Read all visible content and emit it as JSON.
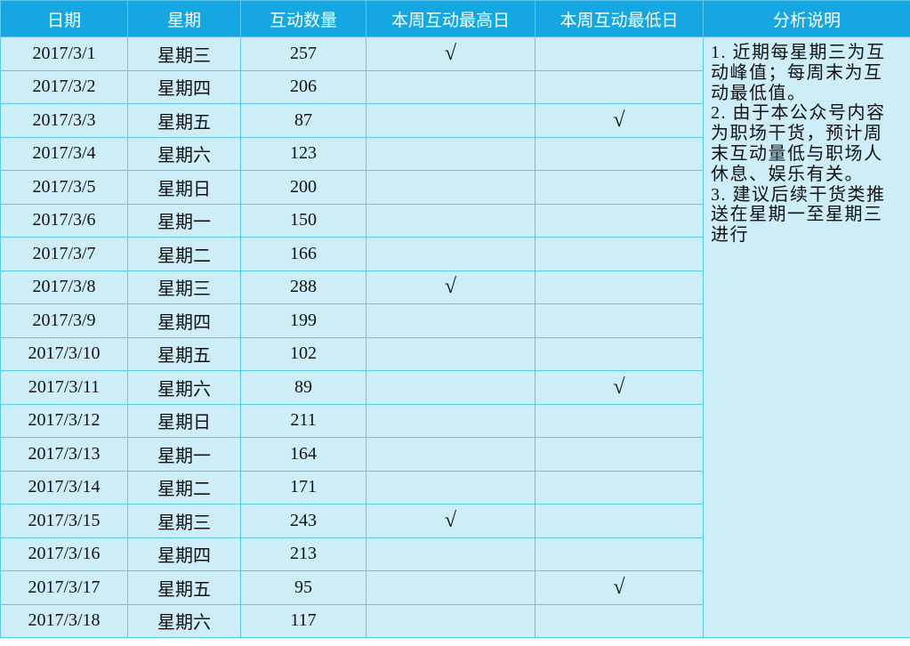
{
  "headers": [
    "日期",
    "星期",
    "互动数量",
    "本周互动最高日",
    "本周互动最低日",
    "分析说明"
  ],
  "check_mark": "√",
  "rows": [
    {
      "date": "2017/3/1",
      "weekday": "星期三",
      "count": "257",
      "high": "√",
      "low": ""
    },
    {
      "date": "2017/3/2",
      "weekday": "星期四",
      "count": "206",
      "high": "",
      "low": ""
    },
    {
      "date": "2017/3/3",
      "weekday": "星期五",
      "count": "87",
      "high": "",
      "low": "√"
    },
    {
      "date": "2017/3/4",
      "weekday": "星期六",
      "count": "123",
      "high": "",
      "low": ""
    },
    {
      "date": "2017/3/5",
      "weekday": "星期日",
      "count": "200",
      "high": "",
      "low": ""
    },
    {
      "date": "2017/3/6",
      "weekday": "星期一",
      "count": "150",
      "high": "",
      "low": ""
    },
    {
      "date": "2017/3/7",
      "weekday": "星期二",
      "count": "166",
      "high": "",
      "low": ""
    },
    {
      "date": "2017/3/8",
      "weekday": "星期三",
      "count": "288",
      "high": "√",
      "low": ""
    },
    {
      "date": "2017/3/9",
      "weekday": "星期四",
      "count": "199",
      "high": "",
      "low": ""
    },
    {
      "date": "2017/3/10",
      "weekday": "星期五",
      "count": "102",
      "high": "",
      "low": ""
    },
    {
      "date": "2017/3/11",
      "weekday": "星期六",
      "count": "89",
      "high": "",
      "low": "√"
    },
    {
      "date": "2017/3/12",
      "weekday": "星期日",
      "count": "211",
      "high": "",
      "low": ""
    },
    {
      "date": "2017/3/13",
      "weekday": "星期一",
      "count": "164",
      "high": "",
      "low": ""
    },
    {
      "date": "2017/3/14",
      "weekday": "星期二",
      "count": "171",
      "high": "",
      "low": ""
    },
    {
      "date": "2017/3/15",
      "weekday": "星期三",
      "count": "243",
      "high": "√",
      "low": ""
    },
    {
      "date": "2017/3/16",
      "weekday": "星期四",
      "count": "213",
      "high": "",
      "low": ""
    },
    {
      "date": "2017/3/17",
      "weekday": "星期五",
      "count": "95",
      "high": "",
      "low": "√"
    },
    {
      "date": "2017/3/18",
      "weekday": "星期六",
      "count": "117",
      "high": "",
      "low": ""
    }
  ],
  "notes_lines": [
    "1. 近期每星期三为互",
    "动峰值；每周末为互",
    "动最低值。",
    "2. 由于本公众号内容",
    "为职场干货，预计周",
    "末互动量低与职场人",
    "休息、娱乐有关。",
    "3. 建议后续干货类推",
    "送在星期一至星期三",
    "进行"
  ],
  "colors": {
    "header_bg": "#14a7e2",
    "cell_bg": "#cdedf9",
    "border": "#5cc8ef"
  }
}
